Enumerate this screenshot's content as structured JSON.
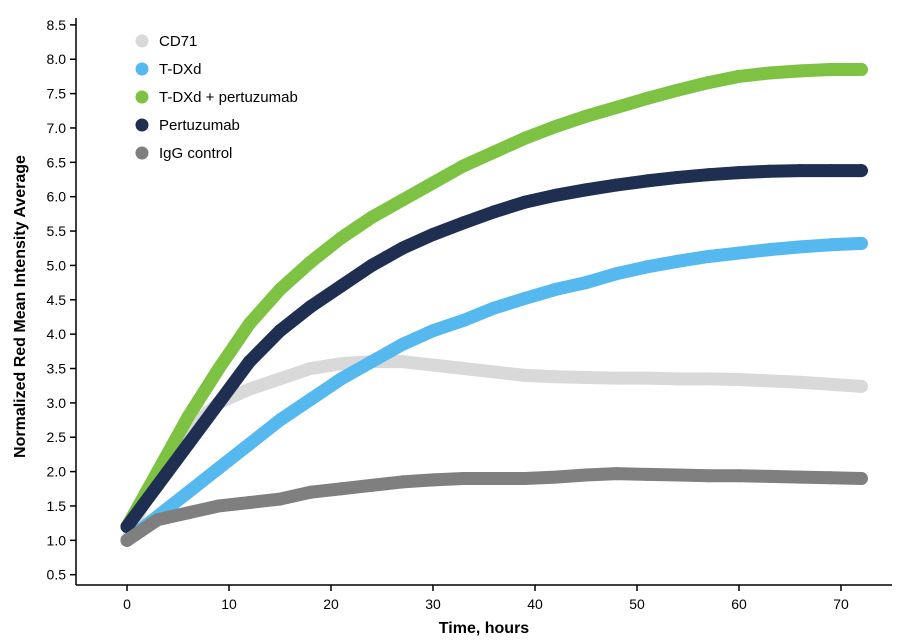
{
  "chart_data": {
    "type": "scatter",
    "title": "",
    "xlabel": "Time, hours",
    "ylabel": "Normalized Red Mean Intensity Average",
    "xlim": [
      -5,
      75
    ],
    "ylim": [
      0.35,
      8.6
    ],
    "x_ticks": [
      0,
      10,
      20,
      30,
      40,
      50,
      60,
      70
    ],
    "y_ticks": [
      0.5,
      1.0,
      1.5,
      2.0,
      2.5,
      3.0,
      3.5,
      4.0,
      4.5,
      5.0,
      5.5,
      6.0,
      6.5,
      7.0,
      7.5,
      8.0,
      8.5
    ],
    "x_tick_labels": [
      "0",
      "10",
      "20",
      "30",
      "40",
      "50",
      "60",
      "70"
    ],
    "y_tick_labels": [
      "0.5",
      "1.0",
      "1.5",
      "2.0",
      "2.5",
      "3.0",
      "3.5",
      "4.0",
      "4.5",
      "5.0",
      "5.5",
      "6.0",
      "6.5",
      "7.0",
      "7.5",
      "8.0",
      "8.5"
    ],
    "grid": false,
    "legend_position": "top-left",
    "x": [
      0,
      3,
      6,
      9,
      12,
      15,
      18,
      21,
      24,
      27,
      30,
      33,
      36,
      39,
      42,
      45,
      48,
      51,
      54,
      57,
      60,
      63,
      66,
      69,
      72
    ],
    "series": [
      {
        "name": "CD71",
        "color": "#d9d9d9",
        "values": [
          1.0,
          2.0,
          2.6,
          3.0,
          3.2,
          3.35,
          3.5,
          3.57,
          3.6,
          3.6,
          3.55,
          3.5,
          3.45,
          3.4,
          3.38,
          3.37,
          3.36,
          3.36,
          3.35,
          3.35,
          3.34,
          3.32,
          3.3,
          3.27,
          3.24
        ]
      },
      {
        "name": "T-DXd",
        "color": "#55b8ef",
        "values": [
          1.0,
          1.35,
          1.7,
          2.05,
          2.4,
          2.75,
          3.05,
          3.35,
          3.6,
          3.85,
          4.05,
          4.2,
          4.38,
          4.52,
          4.65,
          4.75,
          4.88,
          4.98,
          5.06,
          5.13,
          5.18,
          5.23,
          5.27,
          5.3,
          5.32
        ]
      },
      {
        "name": "T-DXd + pertuzumab",
        "color": "#7dc242",
        "values": [
          1.2,
          2.0,
          2.8,
          3.5,
          4.15,
          4.65,
          5.05,
          5.4,
          5.7,
          5.95,
          6.2,
          6.45,
          6.65,
          6.85,
          7.02,
          7.17,
          7.3,
          7.43,
          7.55,
          7.66,
          7.75,
          7.8,
          7.83,
          7.85,
          7.85
        ]
      },
      {
        "name": "Pertuzumab",
        "color": "#1f2f51",
        "values": [
          1.2,
          1.8,
          2.4,
          3.0,
          3.6,
          4.05,
          4.4,
          4.7,
          5.0,
          5.25,
          5.45,
          5.62,
          5.78,
          5.92,
          6.02,
          6.1,
          6.17,
          6.23,
          6.28,
          6.32,
          6.35,
          6.37,
          6.38,
          6.38,
          6.38
        ]
      },
      {
        "name": "IgG control",
        "color": "#7f7f7f",
        "values": [
          1.0,
          1.3,
          1.4,
          1.5,
          1.55,
          1.6,
          1.7,
          1.75,
          1.8,
          1.85,
          1.88,
          1.9,
          1.9,
          1.9,
          1.92,
          1.95,
          1.97,
          1.96,
          1.95,
          1.94,
          1.94,
          1.93,
          1.92,
          1.91,
          1.9
        ]
      }
    ]
  }
}
